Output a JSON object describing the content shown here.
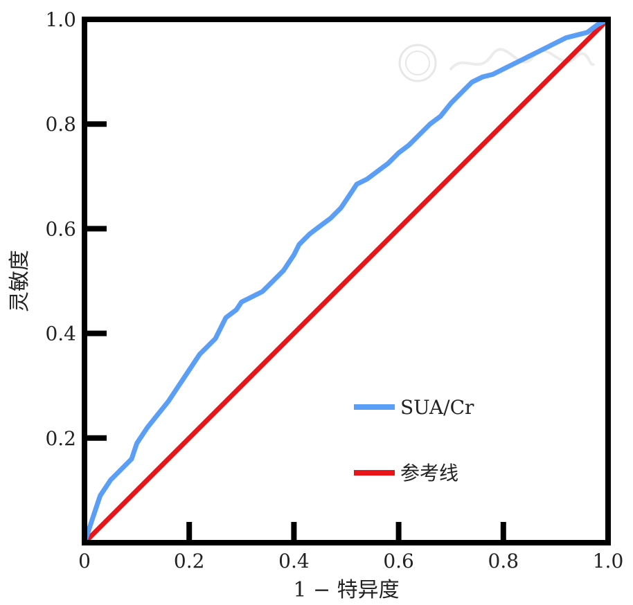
{
  "chart_data": {
    "type": "line",
    "xlabel": "1 − 特异度",
    "ylabel": "灵敏度",
    "xlim": [
      0,
      1
    ],
    "ylim": [
      0,
      1
    ],
    "x_ticks": [
      "0",
      "0.2",
      "0.4",
      "0.6",
      "0.8",
      "1.0"
    ],
    "y_ticks": [
      "0.2",
      "0.4",
      "0.6",
      "0.8",
      "1.0"
    ],
    "grid": false,
    "legend_position": "bottom-right",
    "series": [
      {
        "name": "SUA/Cr",
        "color": "#5b9ef5",
        "x": [
          0,
          0.01,
          0.02,
          0.03,
          0.05,
          0.07,
          0.09,
          0.1,
          0.12,
          0.14,
          0.16,
          0.18,
          0.2,
          0.22,
          0.23,
          0.25,
          0.27,
          0.29,
          0.3,
          0.32,
          0.34,
          0.36,
          0.38,
          0.4,
          0.41,
          0.43,
          0.45,
          0.47,
          0.49,
          0.51,
          0.52,
          0.54,
          0.56,
          0.58,
          0.6,
          0.62,
          0.64,
          0.66,
          0.68,
          0.7,
          0.72,
          0.74,
          0.76,
          0.78,
          0.8,
          0.82,
          0.84,
          0.86,
          0.88,
          0.9,
          0.92,
          0.94,
          0.96,
          0.98,
          1.0
        ],
        "y": [
          0,
          0.03,
          0.06,
          0.09,
          0.12,
          0.14,
          0.16,
          0.19,
          0.22,
          0.245,
          0.27,
          0.3,
          0.33,
          0.36,
          0.37,
          0.39,
          0.43,
          0.445,
          0.46,
          0.47,
          0.48,
          0.5,
          0.52,
          0.55,
          0.57,
          0.59,
          0.605,
          0.62,
          0.64,
          0.67,
          0.685,
          0.695,
          0.71,
          0.725,
          0.745,
          0.76,
          0.78,
          0.8,
          0.815,
          0.84,
          0.86,
          0.88,
          0.89,
          0.895,
          0.905,
          0.915,
          0.925,
          0.935,
          0.945,
          0.955,
          0.965,
          0.97,
          0.975,
          0.99,
          1.0
        ]
      },
      {
        "name": "参考线",
        "color": "#e8151b",
        "x": [
          0,
          1
        ],
        "y": [
          0,
          1
        ]
      }
    ]
  }
}
